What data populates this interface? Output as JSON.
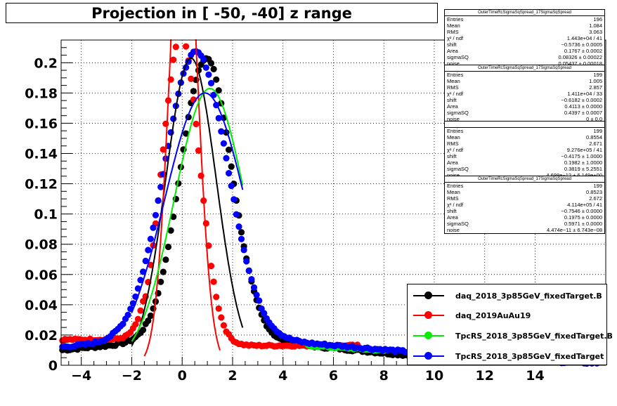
{
  "chart_data": {
    "type": "scatter",
    "title": "Projection in [ -50, -40] z range",
    "xlabel": "",
    "ylabel": "",
    "xlim": [
      -4.8,
      16.8
    ],
    "ylim": [
      0,
      0.215
    ],
    "xticks": [
      -4,
      -2,
      0,
      2,
      4,
      6,
      8,
      10,
      12,
      14
    ],
    "xtick_labels": [
      "−4",
      "−2",
      "0",
      "2",
      "4",
      "6",
      "8",
      "10",
      "12",
      "14"
    ],
    "yticks": [
      0,
      0.02,
      0.04,
      0.06,
      0.08,
      0.1,
      0.12,
      0.14,
      0.16,
      0.18,
      0.2
    ],
    "ytick_labels": [
      "0",
      "0.02",
      "0.04",
      "0.06",
      "0.08",
      "0.1",
      "0.12",
      "0.14",
      "0.16",
      "0.18",
      "0.2"
    ],
    "grid": true,
    "legend_position": "bottom-right",
    "series": [
      {
        "name": "daq_2018_3p85GeV_fixedTarget.B",
        "color": "#000000",
        "markers": {
          "x_start": -4.75,
          "x_end": 9.0,
          "step": 0.1,
          "fn": "core+tail",
          "amp": 0.187,
          "mean": 0.95,
          "sigma": 1.02,
          "tail_amp": 0.016,
          "tail_sigma": 6.0,
          "tail_mean": 1.0,
          "noise": 0.0008
        },
        "fit": {
          "x_start": -2.0,
          "x_end": 2.4,
          "amp": 0.203,
          "mean": 0.35,
          "sigma": 1.0,
          "base": 0.0
        }
      },
      {
        "name": "daq_2019AuAu19",
        "color": "#ff0000",
        "markers": {
          "x_start": -4.75,
          "x_end": 7.0,
          "step": 0.1,
          "fn": "core+flat",
          "amp": 0.205,
          "mean": -0.05,
          "sigma": 0.73,
          "flat": 0.013,
          "flat_lo": 0.017,
          "noise": 0.0006
        },
        "fit": {
          "x_start": -1.5,
          "x_end": 1.5,
          "amp": 0.32,
          "mean": 0.05,
          "sigma": 0.55,
          "base": 0.0
        }
      },
      {
        "name": "TpcRS_2018_3p85GeV_fixedTarget.B",
        "color": "#00ee00",
        "markers": {
          "x_start": 5.0,
          "x_end": 8.0,
          "step": 0.1,
          "fn": "tail",
          "amp": 0.0135,
          "mean": 3.0,
          "sigma": 6.0,
          "noise": 0.0005
        },
        "fit": {
          "x_start": -2.0,
          "x_end": 2.4,
          "amp": 0.183,
          "mean": 1.1,
          "sigma": 1.4,
          "base": 0.0
        }
      },
      {
        "name": "TpcRS_2018_3p85GeV_fixedTarget",
        "color": "#0000ff",
        "markers": {
          "x_start": -4.75,
          "x_end": 16.5,
          "step": 0.1,
          "fn": "core+tail",
          "amp": 0.19,
          "mean": 0.55,
          "sigma": 1.25,
          "tail_amp": 0.017,
          "tail_sigma": 7.0,
          "tail_mean": 1.0,
          "noise": 0.0008
        },
        "fit": {
          "x_start": -2.0,
          "x_end": 2.4,
          "amp": 0.18,
          "mean": 0.9,
          "sigma": 1.6,
          "base": 0.0
        }
      }
    ],
    "stats_boxes": [
      {
        "title": "OuterTimeRcSigmaSqSpread_17SigmaSqSpread",
        "rows": [
          [
            "Entries",
            "196"
          ],
          [
            "Mean",
            "1.084"
          ],
          [
            "RMS",
            "3.063"
          ],
          [
            "χ² / ndf",
            "1.443e+04 / 41"
          ],
          [
            "shift",
            "−0.5736 ± 0.0005"
          ],
          [
            "Area",
            "0.1767 ± 0.0002"
          ],
          [
            "sigmaSQ",
            "0.08326 ± 0.00022"
          ],
          [
            "noise",
            "0.05437 ± 0.00018"
          ]
        ]
      },
      {
        "title": "OuterTimeRcSigmaSqSpread_17SigmaSqSpread",
        "rows": [
          [
            "Entries",
            "199"
          ],
          [
            "Mean",
            "1.005"
          ],
          [
            "RMS",
            "2.857"
          ],
          [
            "χ² / ndf",
            "1.411e+04 / 33"
          ],
          [
            "shift",
            "−0.6182 ± 0.0002"
          ],
          [
            "Area",
            "0.4113 ± 0.0000"
          ],
          [
            "sigmaSQ",
            "0.4397 ± 0.0007"
          ],
          [
            "noise",
            "0 ± 0.0"
          ]
        ]
      },
      {
        "title": "",
        "rows": [
          [
            "Entries",
            "199"
          ],
          [
            "Mean",
            "0.8554"
          ],
          [
            "RMS",
            "2.671"
          ],
          [
            "χ² / ndf",
            "9.276e+05 / 41"
          ],
          [
            "shift",
            "−0.4175 ± 1.0000"
          ],
          [
            "Area",
            "0.1982 ± 1.0000"
          ],
          [
            "sigmaSQ",
            "0.3819 ± 5.2551"
          ],
          [
            "noise",
            "4.698e−12 ± 6.149e+00"
          ]
        ]
      },
      {
        "title": "OuterTimeRcSigmaSqSpread_17SigmaSqSpread",
        "rows": [
          [
            "Entries",
            "199"
          ],
          [
            "Mean",
            "0.8523"
          ],
          [
            "RMS",
            "2.672"
          ],
          [
            "χ² / ndf",
            "4.114e+05 / 41"
          ],
          [
            "shift",
            "−0.7546 ± 0.0000"
          ],
          [
            "Area",
            "0.1975 ± 0.0000"
          ],
          [
            "sigmaSQ",
            "0.5971 ± 0.0000"
          ],
          [
            "noise",
            "4.474e−11 ± 6.743e−08"
          ]
        ]
      }
    ]
  }
}
